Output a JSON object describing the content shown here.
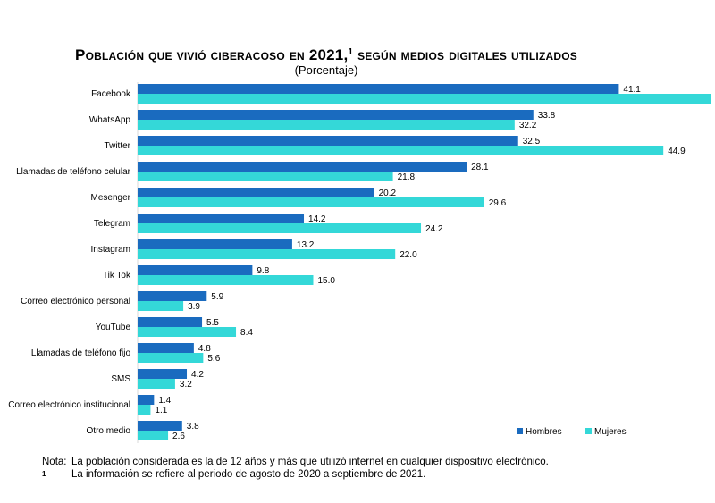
{
  "title": {
    "main": "Población que vivió ciberacoso en 2021,",
    "footnote_mark": "1",
    "rest": " según medios digitales utilizados"
  },
  "subtitle": "(Porcentaje)",
  "colors": {
    "hombres": "#1a6bbf",
    "mujeres": "#34d8d8"
  },
  "chart_data": {
    "type": "bar",
    "orientation": "horizontal",
    "categories": [
      "Facebook",
      "WhatsApp",
      "Twitter",
      "Llamadas de teléfono celular",
      "Mesenger",
      "Telegram",
      "Instagram",
      "Tik Tok",
      "Correo electrónico personal",
      "YouTube",
      "Llamadas de teléfono fijo",
      "SMS",
      "Correo electrónico institucional",
      "Otro medio"
    ],
    "series": [
      {
        "name": "Hombres",
        "values": [
          41.1,
          33.8,
          32.5,
          28.1,
          20.2,
          14.2,
          13.2,
          9.8,
          5.9,
          5.5,
          4.8,
          4.2,
          1.4,
          3.8
        ]
      },
      {
        "name": "Mujeres",
        "values": [
          49.0,
          32.2,
          44.9,
          21.8,
          29.6,
          24.2,
          22.0,
          15.0,
          3.9,
          8.4,
          5.6,
          3.2,
          1.1,
          2.6
        ]
      }
    ],
    "legend_position": "bottom-right"
  },
  "notes": {
    "nota_label": "Nota:",
    "nota_text": "La población considerada es la de 12 años y más que utilizó internet en cualquier dispositivo electrónico.",
    "footnote_mark": "1",
    "footnote_text": "La información se refiere al periodo de agosto de 2020 a septiembre de 2021."
  }
}
